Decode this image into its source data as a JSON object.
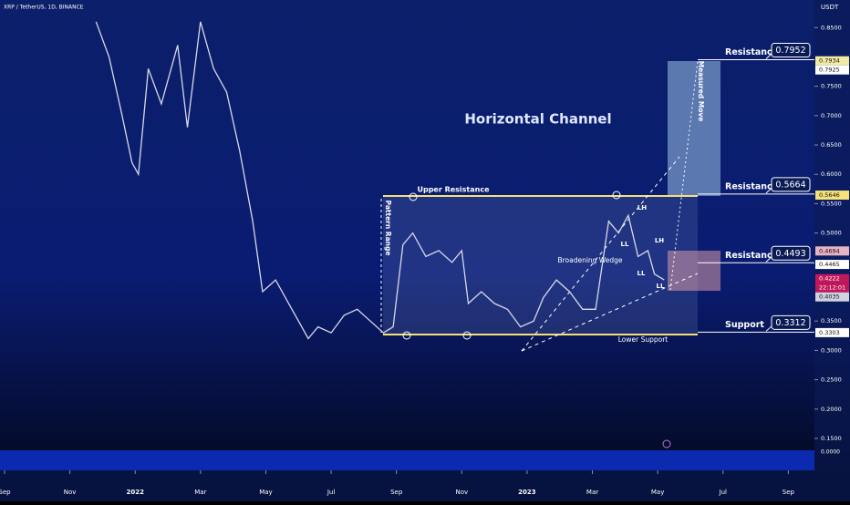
{
  "chart_data": {
    "type": "line",
    "title": "XRP / TetherUS, 1D, BINANCE",
    "currency": "USDT",
    "color": "#d7d9e6",
    "x": [
      2.8,
      3.2,
      3.6,
      3.9,
      4.1,
      4.4,
      4.8,
      5.3,
      5.6,
      6.0,
      6.4,
      6.8,
      7.2,
      7.6,
      7.9,
      8.3,
      8.7,
      9.0,
      9.3,
      9.6,
      10.0,
      10.4,
      10.8,
      11.2,
      11.6,
      11.9,
      12.2,
      12.5,
      12.9,
      13.3,
      13.7,
      14.0,
      14.2,
      14.6,
      15.0,
      15.4,
      15.8,
      16.2,
      16.5,
      16.9,
      17.3,
      17.7,
      18.1,
      18.5,
      18.8,
      19.1,
      19.4,
      19.7,
      19.9,
      20.2
    ],
    "values": [
      0.86,
      0.8,
      0.7,
      0.62,
      0.6,
      0.78,
      0.72,
      0.82,
      0.68,
      0.86,
      0.78,
      0.74,
      0.64,
      0.52,
      0.4,
      0.42,
      0.38,
      0.35,
      0.32,
      0.34,
      0.33,
      0.36,
      0.37,
      0.35,
      0.33,
      0.34,
      0.48,
      0.5,
      0.46,
      0.47,
      0.45,
      0.47,
      0.38,
      0.4,
      0.38,
      0.37,
      0.34,
      0.35,
      0.39,
      0.42,
      0.4,
      0.37,
      0.37,
      0.52,
      0.5,
      0.53,
      0.46,
      0.47,
      0.43,
      0.42
    ],
    "xlim": [
      -0.14,
      24.8
    ],
    "ylim": [
      0.136,
      0.897
    ],
    "xticks": [
      {
        "value": 0,
        "label": "Sep"
      },
      {
        "value": 2,
        "label": "Nov"
      },
      {
        "value": 4,
        "label": "2022"
      },
      {
        "value": 6,
        "label": "Mar"
      },
      {
        "value": 8,
        "label": "May"
      },
      {
        "value": 10,
        "label": "Jul"
      },
      {
        "value": 12,
        "label": "Sep"
      },
      {
        "value": 14,
        "label": "Nov"
      },
      {
        "value": 16,
        "label": "2023"
      },
      {
        "value": 18,
        "label": "Mar"
      },
      {
        "value": 20,
        "label": "May"
      },
      {
        "value": 22,
        "label": "Jul"
      },
      {
        "value": 24,
        "label": "Sep"
      }
    ],
    "yticks": [
      {
        "value": 0.85,
        "label": "0.8500"
      },
      {
        "value": 0.75,
        "label": "0.7500"
      },
      {
        "value": 0.7,
        "label": "0.7000"
      },
      {
        "value": 0.65,
        "label": "0.6500"
      },
      {
        "value": 0.6,
        "label": "0.6000"
      },
      {
        "value": 0.55,
        "label": "0.5500"
      },
      {
        "value": 0.5,
        "label": "0.5000"
      },
      {
        "value": 0.35,
        "label": "0.3500"
      },
      {
        "value": 0.3,
        "label": "0.3000"
      },
      {
        "value": 0.25,
        "label": "0.2500"
      },
      {
        "value": 0.2,
        "label": "0.2000"
      },
      {
        "value": 0.15,
        "label": "0.1500"
      }
    ],
    "zero_label": "0.0000",
    "price_tags": [
      {
        "value": 0.7934,
        "color": "#f3e9a6"
      },
      {
        "value": 0.7925,
        "color": "#ffffff"
      },
      {
        "value": 0.5646,
        "color": "#f5e07a"
      },
      {
        "value": 0.4694,
        "color": "#e6b3c3"
      },
      {
        "value": 0.4465,
        "color": "#ffffff"
      },
      {
        "value": 0.4222,
        "color": "#c2185b"
      },
      {
        "value": 0.4035,
        "color": "#cfd3e0"
      },
      {
        "value": 0.3303,
        "color": "#ffffff"
      }
    ],
    "countdown": "22:12:01",
    "levels": [
      {
        "label": "Resistance",
        "value": 0.7952
      },
      {
        "label": "Resistance",
        "value": 0.5664
      },
      {
        "label": "Resistance",
        "value": 0.4493
      },
      {
        "label": "Support",
        "value": 0.3312
      }
    ],
    "annotations": [
      "Horizontal Channel",
      "Upper Resistance",
      "Lower Support",
      "Pattern Range",
      "Broadening Wedge",
      "Measured Move",
      "LH",
      "LL",
      "LH",
      "LL",
      "LL"
    ]
  }
}
